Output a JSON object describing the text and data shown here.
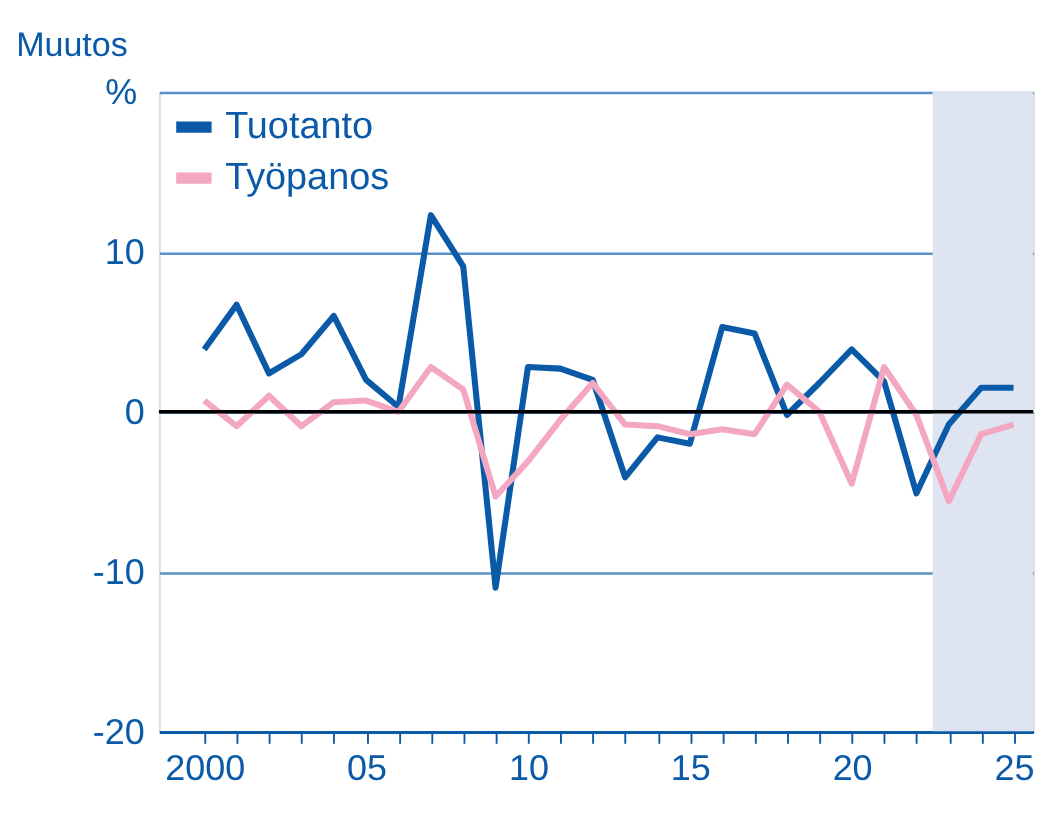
{
  "chart_data": {
    "type": "line",
    "title": "Muutos",
    "ylabel": "%",
    "x": [
      2000,
      2001,
      2002,
      2003,
      2004,
      2005,
      2006,
      2007,
      2008,
      2009,
      2010,
      2011,
      2012,
      2013,
      2014,
      2015,
      2016,
      2017,
      2018,
      2019,
      2020,
      2021,
      2022,
      2023,
      2024,
      2025
    ],
    "series": [
      {
        "name": "Tuotanto",
        "color": "#0a5aa8",
        "values": [
          3.9,
          6.7,
          2.4,
          3.6,
          6.0,
          2.0,
          0.3,
          12.3,
          9.1,
          -11.0,
          2.8,
          2.7,
          2.0,
          -4.1,
          -1.6,
          -2.0,
          5.3,
          4.9,
          -0.2,
          1.8,
          3.9,
          1.9,
          -5.1,
          -0.8,
          1.5,
          1.5
        ]
      },
      {
        "name": "Työpanos",
        "color": "#f4a7c0",
        "values": [
          0.7,
          -0.9,
          1.0,
          -0.9,
          0.6,
          0.7,
          0.0,
          2.8,
          1.4,
          -5.3,
          -3.1,
          -0.5,
          1.8,
          -0.8,
          -0.9,
          -1.4,
          -1.1,
          -1.4,
          1.7,
          0.0,
          -4.5,
          2.8,
          -0.2,
          -5.6,
          -1.4,
          -0.8
        ]
      }
    ],
    "xlim": [
      1998.6,
      2025.6
    ],
    "xticks": [
      {
        "value": 2000,
        "label": "2000"
      },
      {
        "value": 2001,
        "label": null
      },
      {
        "value": 2002,
        "label": null
      },
      {
        "value": 2003,
        "label": null
      },
      {
        "value": 2004,
        "label": null
      },
      {
        "value": 2005,
        "label": "05"
      },
      {
        "value": 2006,
        "label": null
      },
      {
        "value": 2007,
        "label": null
      },
      {
        "value": 2008,
        "label": null
      },
      {
        "value": 2009,
        "label": null
      },
      {
        "value": 2010,
        "label": "10"
      },
      {
        "value": 2011,
        "label": null
      },
      {
        "value": 2012,
        "label": null
      },
      {
        "value": 2013,
        "label": null
      },
      {
        "value": 2014,
        "label": null
      },
      {
        "value": 2015,
        "label": "15"
      },
      {
        "value": 2016,
        "label": null
      },
      {
        "value": 2017,
        "label": null
      },
      {
        "value": 2018,
        "label": null
      },
      {
        "value": 2019,
        "label": null
      },
      {
        "value": 2020,
        "label": "20"
      },
      {
        "value": 2021,
        "label": null
      },
      {
        "value": 2022,
        "label": null
      },
      {
        "value": 2023,
        "label": null
      },
      {
        "value": 2024,
        "label": null
      },
      {
        "value": 2025,
        "label": "25"
      }
    ],
    "ylim": [
      -20,
      20
    ],
    "yticks": [
      -20,
      -10,
      0,
      10,
      {
        "value": 20,
        "label": null
      }
    ],
    "grid": "y",
    "legend": "top left",
    "ref_lines": [
      {
        "axis": "y",
        "value": 0,
        "label": null,
        "color": "#000000"
      }
    ],
    "bands": [
      {
        "axis": "x",
        "from": 2022.5,
        "to": 2025.6,
        "label": null,
        "color": "#dfe4f2"
      }
    ],
    "line_style": "solid",
    "marker": "none"
  }
}
